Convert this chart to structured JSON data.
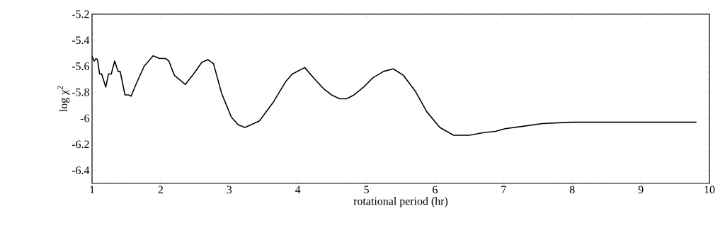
{
  "chart_data": {
    "type": "line",
    "xlabel": "rotational period (hr)",
    "ylabel": "log χ$^{2}$",
    "x": [
      1.0,
      1.03,
      1.06,
      1.08,
      1.11,
      1.14,
      1.2,
      1.24,
      1.28,
      1.33,
      1.38,
      1.41,
      1.48,
      1.53,
      1.57,
      1.64,
      1.76,
      1.81,
      1.89,
      1.98,
      2.07,
      2.12,
      2.2,
      2.36,
      2.48,
      2.6,
      2.69,
      2.77,
      2.89,
      3.03,
      3.13,
      3.23,
      3.44,
      3.65,
      3.82,
      3.92,
      4.1,
      4.23,
      4.37,
      4.49,
      4.61,
      4.71,
      4.82,
      4.96,
      5.09,
      5.25,
      5.39,
      5.54,
      5.71,
      5.88,
      6.07,
      6.27,
      6.5,
      6.71,
      6.88,
      7.02,
      7.3,
      7.57,
      7.98,
      8.74,
      9.26,
      9.81
    ],
    "values": [
      -5.52,
      -5.56,
      -5.54,
      -5.55,
      -5.66,
      -5.66,
      -5.76,
      -5.66,
      -5.66,
      -5.56,
      -5.64,
      -5.64,
      -5.82,
      -5.82,
      -5.83,
      -5.74,
      -5.6,
      -5.57,
      -5.52,
      -5.54,
      -5.54,
      -5.56,
      -5.67,
      -5.74,
      -5.66,
      -5.57,
      -5.55,
      -5.58,
      -5.81,
      -5.99,
      -6.05,
      -6.07,
      -6.02,
      -5.87,
      -5.72,
      -5.66,
      -5.61,
      -5.69,
      -5.77,
      -5.82,
      -5.85,
      -5.85,
      -5.82,
      -5.76,
      -5.69,
      -5.64,
      -5.62,
      -5.67,
      -5.79,
      -5.95,
      -6.07,
      -6.13,
      -6.13,
      -6.11,
      -6.1,
      -6.08,
      -6.06,
      -6.04,
      -6.03,
      -6.03,
      -6.03,
      -6.03
    ],
    "color": "#000000",
    "marker": "none",
    "line_style": "solid",
    "xlim": [
      1,
      10
    ],
    "ylim": [
      -6.5,
      -5.2
    ],
    "xticks": [
      1,
      2,
      3,
      4,
      5,
      6,
      7,
      8,
      9,
      10
    ],
    "yticks": [
      -6.4,
      -6.2,
      -6,
      -5.8,
      -5.6,
      -5.4,
      -5.2
    ]
  }
}
